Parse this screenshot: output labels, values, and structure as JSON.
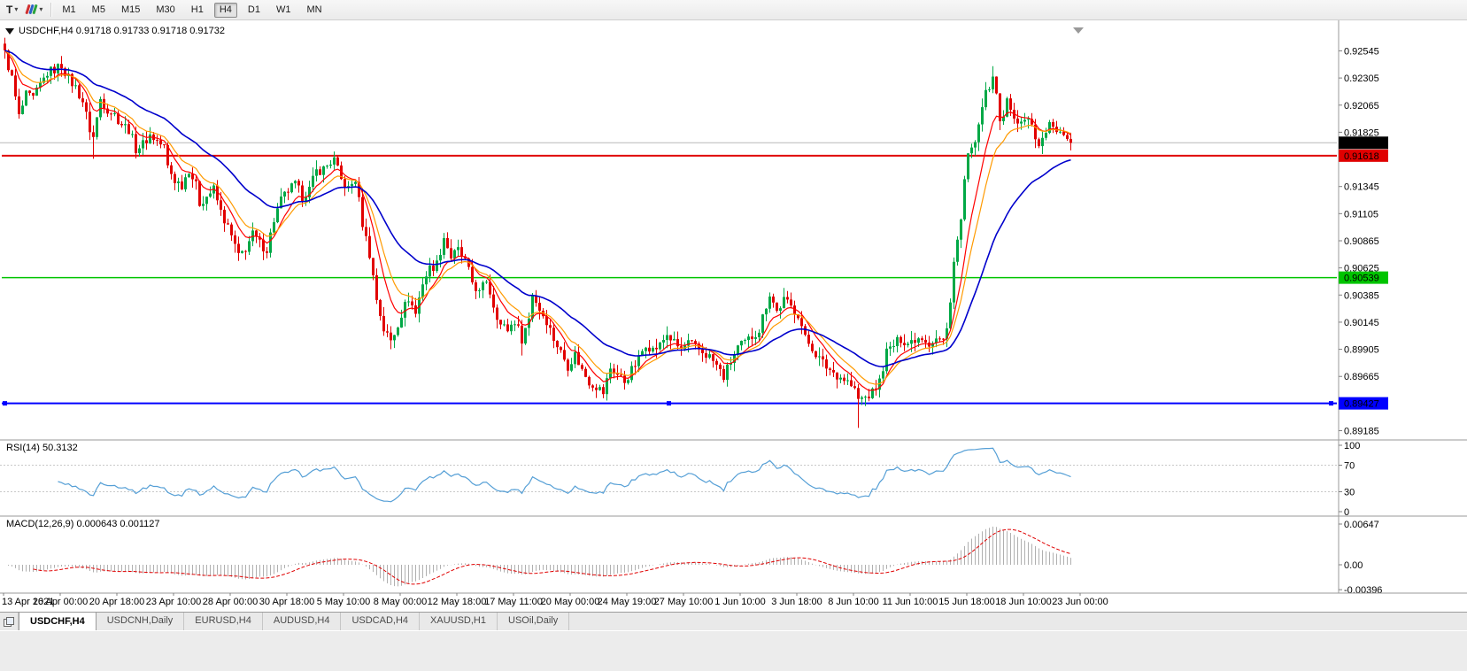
{
  "toolbar": {
    "text_tool_label": "T",
    "timeframes": [
      "M1",
      "M5",
      "M15",
      "M30",
      "H1",
      "H4",
      "D1",
      "W1",
      "MN"
    ],
    "active_timeframe": "H4"
  },
  "tabs": [
    "USDCHF,H4",
    "USDCNH,Daily",
    "EURUSD,H4",
    "AUDUSD,H4",
    "USDCAD,H4",
    "XAUUSD,H1",
    "USOil,Daily"
  ],
  "active_tab": "USDCHF,H4",
  "colors": {
    "bull": "#00a846",
    "bear": "#e10000",
    "ma_red": "#ff0000",
    "ma_orange": "#ff9a00",
    "ma_blue": "#0000cc",
    "rsi_line": "#559fd6",
    "macd_hist": "#b0b0b0",
    "macd_signal": "#e00000",
    "level_red": "#e00000",
    "level_green": "#00c400",
    "level_blue": "#0000ff",
    "current_price_box": "#000000",
    "axis_sep": "#9a9a9a"
  },
  "chart_data": {
    "type": "candlestick",
    "symbol": "USDCHF",
    "timeframe": "H4",
    "title": "USDCHF,H4  0.91718 0.91733 0.91718 0.91732",
    "ohlc_current": {
      "open": 0.91718,
      "high": 0.91733,
      "low": 0.91718,
      "close": 0.91732
    },
    "current_price": "0.91732",
    "y_range": [
      0.8915,
      0.9276
    ],
    "price_ticks": [
      "0.92545",
      "0.92305",
      "0.92065",
      "0.91825",
      "0.91345",
      "0.91105",
      "0.90865",
      "0.90625",
      "0.90385",
      "0.90145",
      "0.89905",
      "0.89665",
      "0.89185"
    ],
    "time_ticks": [
      "13 Apr 2021",
      "16 Apr 00:00",
      "20 Apr 18:00",
      "23 Apr 10:00",
      "28 Apr 00:00",
      "30 Apr 18:00",
      "5 May 10:00",
      "8 May 00:00",
      "12 May 18:00",
      "17 May 11:00",
      "20 May 00:00",
      "24 May 19:00",
      "27 May 10:00",
      "1 Jun 10:00",
      "3 Jun 18:00",
      "8 Jun 10:00",
      "11 Jun 10:00",
      "15 Jun 18:00",
      "18 Jun 10:00",
      "23 Jun 00:00"
    ],
    "levels": [
      {
        "name": "resistance-red",
        "price": 0.91618,
        "label": "0.91618",
        "color": "#e00000",
        "width": 2,
        "handles": false
      },
      {
        "name": "support-green",
        "price": 0.90539,
        "label": "0.90539",
        "color": "#00c400",
        "width": 1.6,
        "handles": false
      },
      {
        "name": "support-blue",
        "price": 0.89427,
        "label": "0.89427",
        "color": "#0000ff",
        "width": 2,
        "handles": true
      }
    ],
    "moving_averages": [
      {
        "period": 8,
        "color": "#ff0000",
        "width": 1.2
      },
      {
        "period": 13,
        "color": "#ff9a00",
        "width": 1.2
      },
      {
        "period": 34,
        "color": "#0000cc",
        "width": 1.6
      }
    ],
    "rsi": {
      "label": "RSI(14) 50.3132",
      "period": 14,
      "current": 50.3132,
      "ticks": [
        "100",
        "70",
        "30",
        "0"
      ],
      "tick_values": [
        100,
        70,
        30,
        0
      ],
      "dashed_levels": [
        70,
        30
      ]
    },
    "macd": {
      "label": "MACD(12,26,9) 0.000643 0.001127",
      "params": [
        12,
        26,
        9
      ],
      "macd_current": 0.000643,
      "signal_current": 0.001127,
      "ticks": [
        "0.00647",
        "0.00",
        "-0.00396"
      ],
      "tick_values": [
        0.00647,
        0.0,
        -0.00396
      ]
    },
    "candles": {
      "count": 302,
      "anchors": [
        [
          0,
          0.9252
        ],
        [
          2,
          0.923
        ],
        [
          4,
          0.9196
        ],
        [
          6,
          0.9215
        ],
        [
          8,
          0.9212
        ],
        [
          10,
          0.9224
        ],
        [
          12,
          0.9235
        ],
        [
          14,
          0.9238
        ],
        [
          16,
          0.9242
        ],
        [
          18,
          0.923
        ],
        [
          20,
          0.9222
        ],
        [
          22,
          0.921
        ],
        [
          24,
          0.9185
        ],
        [
          25,
          0.9178
        ],
        [
          26,
          0.9195
        ],
        [
          27,
          0.9212
        ],
        [
          29,
          0.9203
        ],
        [
          31,
          0.9198
        ],
        [
          33,
          0.919
        ],
        [
          35,
          0.9185
        ],
        [
          37,
          0.9168
        ],
        [
          39,
          0.9172
        ],
        [
          41,
          0.918
        ],
        [
          43,
          0.9175
        ],
        [
          45,
          0.9169
        ],
        [
          46,
          0.9152
        ],
        [
          48,
          0.914
        ],
        [
          50,
          0.9136
        ],
        [
          52,
          0.915
        ],
        [
          54,
          0.9135
        ],
        [
          55,
          0.912
        ],
        [
          57,
          0.9126
        ],
        [
          59,
          0.9132
        ],
        [
          61,
          0.9112
        ],
        [
          63,
          0.9098
        ],
        [
          65,
          0.9082
        ],
        [
          66,
          0.9072
        ],
        [
          68,
          0.908
        ],
        [
          70,
          0.9092
        ],
        [
          72,
          0.9084
        ],
        [
          74,
          0.9079
        ],
        [
          76,
          0.9105
        ],
        [
          78,
          0.9122
        ],
        [
          80,
          0.9131
        ],
        [
          82,
          0.9136
        ],
        [
          84,
          0.9126
        ],
        [
          86,
          0.9132
        ],
        [
          88,
          0.9148
        ],
        [
          90,
          0.915
        ],
        [
          92,
          0.9156
        ],
        [
          93,
          0.9158
        ],
        [
          95,
          0.914
        ],
        [
          97,
          0.9132
        ],
        [
          99,
          0.9141
        ],
        [
          101,
          0.9102
        ],
        [
          103,
          0.9075
        ],
        [
          105,
          0.9035
        ],
        [
          107,
          0.9008
        ],
        [
          109,
          0.8998
        ],
        [
          110,
          0.9005
        ],
        [
          112,
          0.9022
        ],
        [
          114,
          0.9036
        ],
        [
          116,
          0.9022
        ],
        [
          118,
          0.905
        ],
        [
          120,
          0.9062
        ],
        [
          122,
          0.9066
        ],
        [
          124,
          0.909
        ],
        [
          126,
          0.9072
        ],
        [
          128,
          0.9078
        ],
        [
          130,
          0.9068
        ],
        [
          132,
          0.905
        ],
        [
          134,
          0.904
        ],
        [
          136,
          0.9052
        ],
        [
          138,
          0.903
        ],
        [
          140,
          0.9012
        ],
        [
          142,
          0.9008
        ],
        [
          144,
          0.9016
        ],
        [
          146,
          0.9
        ],
        [
          148,
          0.9018
        ],
        [
          149,
          0.904
        ],
        [
          151,
          0.9026
        ],
        [
          153,
          0.9016
        ],
        [
          155,
          0.9
        ],
        [
          157,
          0.8988
        ],
        [
          159,
          0.8976
        ],
        [
          161,
          0.8986
        ],
        [
          163,
          0.8972
        ],
        [
          165,
          0.8962
        ],
        [
          167,
          0.8958
        ],
        [
          169,
          0.8952
        ],
        [
          171,
          0.8974
        ],
        [
          173,
          0.8968
        ],
        [
          175,
          0.8962
        ],
        [
          177,
          0.8972
        ],
        [
          179,
          0.8982
        ],
        [
          181,
          0.8996
        ],
        [
          183,
          0.899
        ],
        [
          185,
          0.8994
        ],
        [
          187,
          0.9004
        ],
        [
          189,
          0.8996
        ],
        [
          191,
          0.899
        ],
        [
          193,
          0.8996
        ],
        [
          195,
          0.8992
        ],
        [
          197,
          0.8988
        ],
        [
          199,
          0.8984
        ],
        [
          201,
          0.8976
        ],
        [
          203,
          0.8966
        ],
        [
          205,
          0.898
        ],
        [
          207,
          0.8992
        ],
        [
          209,
          0.8996
        ],
        [
          211,
          0.9002
        ],
        [
          213,
          0.9008
        ],
        [
          215,
          0.903
        ],
        [
          216,
          0.904
        ],
        [
          218,
          0.9024
        ],
        [
          220,
          0.9034
        ],
        [
          222,
          0.9028
        ],
        [
          224,
          0.9022
        ],
        [
          226,
          0.9
        ],
        [
          228,
          0.8992
        ],
        [
          230,
          0.8982
        ],
        [
          232,
          0.8975
        ],
        [
          234,
          0.897
        ],
        [
          236,
          0.8966
        ],
        [
          238,
          0.8962
        ],
        [
          240,
          0.8954
        ],
        [
          241,
          0.8946
        ],
        [
          243,
          0.8948
        ],
        [
          245,
          0.8952
        ],
        [
          247,
          0.8962
        ],
        [
          249,
          0.8988
        ],
        [
          251,
          0.8994
        ],
        [
          253,
          0.9
        ],
        [
          255,
          0.8996
        ],
        [
          257,
          0.9
        ],
        [
          259,
          0.9002
        ],
        [
          261,
          0.8996
        ],
        [
          263,
          0.9
        ],
        [
          265,
          0.8998
        ],
        [
          266,
          0.9008
        ],
        [
          267,
          0.9036
        ],
        [
          268,
          0.9068
        ],
        [
          269,
          0.9086
        ],
        [
          270,
          0.9104
        ],
        [
          271,
          0.914
        ],
        [
          272,
          0.916
        ],
        [
          273,
          0.9165
        ],
        [
          274,
          0.9178
        ],
        [
          275,
          0.9185
        ],
        [
          276,
          0.9204
        ],
        [
          277,
          0.9216
        ],
        [
          278,
          0.9222
        ],
        [
          279,
          0.9228
        ],
        [
          280,
          0.9215
        ],
        [
          281,
          0.9196
        ],
        [
          282,
          0.92
        ],
        [
          283,
          0.9208
        ],
        [
          284,
          0.9206
        ],
        [
          285,
          0.9196
        ],
        [
          286,
          0.9188
        ],
        [
          288,
          0.9196
        ],
        [
          290,
          0.9188
        ],
        [
          291,
          0.9176
        ],
        [
          292,
          0.9168
        ],
        [
          293,
          0.918
        ],
        [
          295,
          0.919
        ],
        [
          297,
          0.9186
        ],
        [
          299,
          0.918
        ],
        [
          301,
          0.91732
        ]
      ],
      "wick_overrides": {
        "0": {
          "high": 0.9256
        },
        "16": {
          "high": 0.9247
        },
        "25": {
          "low": 0.9159
        },
        "93": {
          "high": 0.9163
        },
        "146": {
          "low": 0.8985
        },
        "241": {
          "low": 0.8921
        },
        "279": {
          "high": 0.9241
        }
      }
    }
  }
}
